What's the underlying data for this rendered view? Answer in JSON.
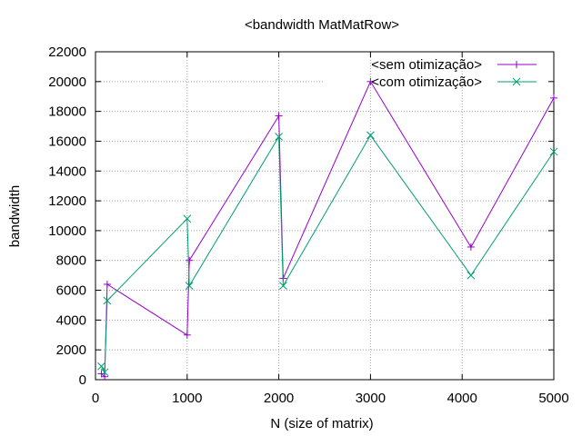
{
  "chart_data": {
    "type": "line",
    "title": "<bandwidth MatMatRow>",
    "xlabel": "N (size of matrix)",
    "ylabel": "bandwidth",
    "xlim": [
      0,
      5000
    ],
    "ylim": [
      0,
      22000
    ],
    "x_ticks": [
      0,
      1000,
      2000,
      3000,
      4000,
      5000
    ],
    "y_ticks": [
      0,
      2000,
      4000,
      6000,
      8000,
      10000,
      12000,
      14000,
      16000,
      18000,
      20000,
      22000
    ],
    "x_tick_labels": [
      "0",
      "1000",
      "2000",
      "3000",
      "4000",
      "5000"
    ],
    "y_tick_labels": [
      "0",
      "2000",
      "4000",
      "6000",
      "8000",
      "10000",
      "12000",
      "14000",
      "16000",
      "18000",
      "20000",
      "22000"
    ],
    "grid": true,
    "legend_position": "top-right",
    "series": [
      {
        "name": "<sem otimização>",
        "color": "#9400d3",
        "marker": "plus",
        "x": [
          64,
          100,
          128,
          1000,
          1024,
          2000,
          2048,
          3000,
          4096,
          5000
        ],
        "y": [
          400,
          200,
          6400,
          3000,
          8000,
          17700,
          6800,
          20000,
          8900,
          18900
        ]
      },
      {
        "name": "<com otimização>",
        "color": "#009e73",
        "marker": "cross",
        "x": [
          64,
          100,
          128,
          1000,
          1024,
          2000,
          2048,
          3000,
          4096,
          5000
        ],
        "y": [
          900,
          500,
          5300,
          10800,
          6300,
          16300,
          6300,
          16400,
          7000,
          15300
        ]
      }
    ]
  }
}
